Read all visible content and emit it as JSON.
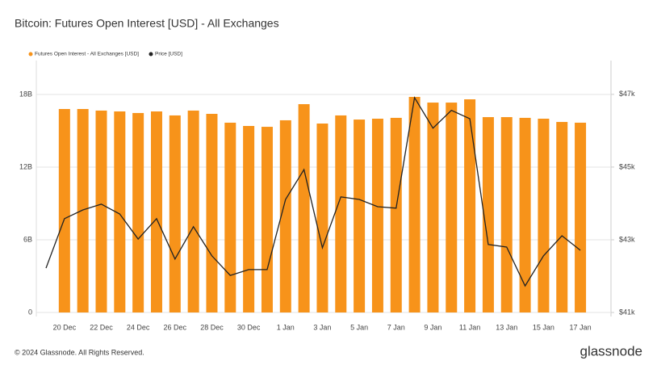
{
  "chart_data": {
    "type": "bar-line",
    "title": "Bitcoin: Futures Open Interest [USD] - All Exchanges",
    "categories": [
      null,
      "20 Dec",
      null,
      "22 Dec",
      null,
      "24 Dec",
      null,
      "26 Dec",
      null,
      "28 Dec",
      null,
      "30 Dec",
      null,
      "1 Jan",
      null,
      "3 Jan",
      null,
      "5 Jan",
      null,
      "7 Jan",
      null,
      "9 Jan",
      null,
      "11 Jan",
      null,
      "13 Jan",
      null,
      "15 Jan",
      null,
      "17 Jan"
    ],
    "series": [
      {
        "name": "Futures Open Interest - All Exchanges [USD]",
        "type": "bar",
        "color": "#f7931a",
        "values": [
          null,
          16.8,
          16.8,
          16.67,
          16.6,
          16.47,
          16.6,
          16.27,
          16.67,
          16.4,
          15.67,
          15.4,
          15.33,
          15.87,
          17.2,
          15.6,
          16.27,
          15.93,
          16.0,
          16.07,
          17.8,
          17.33,
          17.33,
          17.6,
          16.13,
          16.13,
          16.07,
          16.0,
          15.73,
          15.67
        ]
      },
      {
        "name": "Price [USD]",
        "type": "line",
        "color": "#222222",
        "axis": "y2",
        "values": [
          42220,
          43580,
          43820,
          43980,
          43710,
          43020,
          43580,
          42470,
          43360,
          42560,
          42020,
          42180,
          42180,
          44110,
          44930,
          42780,
          44180,
          44110,
          43910,
          43870,
          46910,
          46070,
          46560,
          46330,
          42870,
          42800,
          41730,
          42560,
          43110,
          42710
        ]
      }
    ],
    "ylim": [
      0,
      20.8
    ],
    "yticks": [
      0,
      {
        "value": 6,
        "label": "6B"
      },
      {
        "value": 12,
        "label": "12B"
      },
      {
        "value": 18,
        "label": "18B"
      }
    ],
    "y2lim": [
      41000,
      47930
    ],
    "y2ticks": [
      {
        "value": 41000,
        "label": "$41k"
      },
      {
        "value": 43000,
        "label": "$43k"
      },
      {
        "value": 45000,
        "label": "$45k"
      },
      {
        "value": 47000,
        "label": "$47k"
      }
    ],
    "grid": true,
    "legend": "top-left"
  },
  "footer": {
    "copyright": "© 2024 Glassnode. All Rights Reserved.",
    "brand": "glassnode"
  }
}
